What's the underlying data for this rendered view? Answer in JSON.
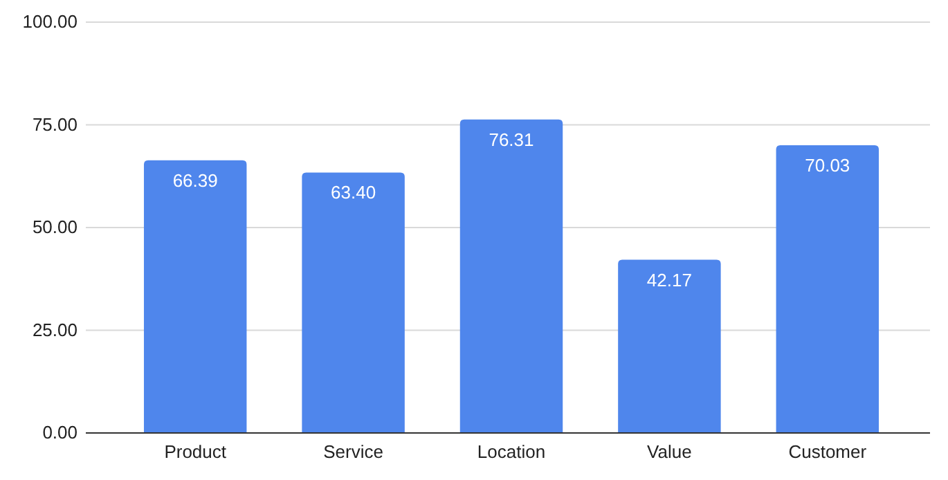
{
  "chart_data": {
    "type": "bar",
    "categories": [
      "Product",
      "Service",
      "Location",
      "Value",
      "Customer"
    ],
    "values": [
      66.39,
      63.4,
      76.31,
      42.17,
      70.03
    ],
    "value_labels": [
      "66.39",
      "63.40",
      "76.31",
      "42.17",
      "70.03"
    ],
    "color": "#4f86ec",
    "ylim": [
      0,
      100
    ],
    "yticks": [
      {
        "value": 0,
        "label": "0.00"
      },
      {
        "value": 25,
        "label": "25.00"
      },
      {
        "value": 50,
        "label": "50.00"
      },
      {
        "value": 75,
        "label": "75.00"
      },
      {
        "value": 100,
        "label": "100.00"
      }
    ],
    "grid": true
  }
}
